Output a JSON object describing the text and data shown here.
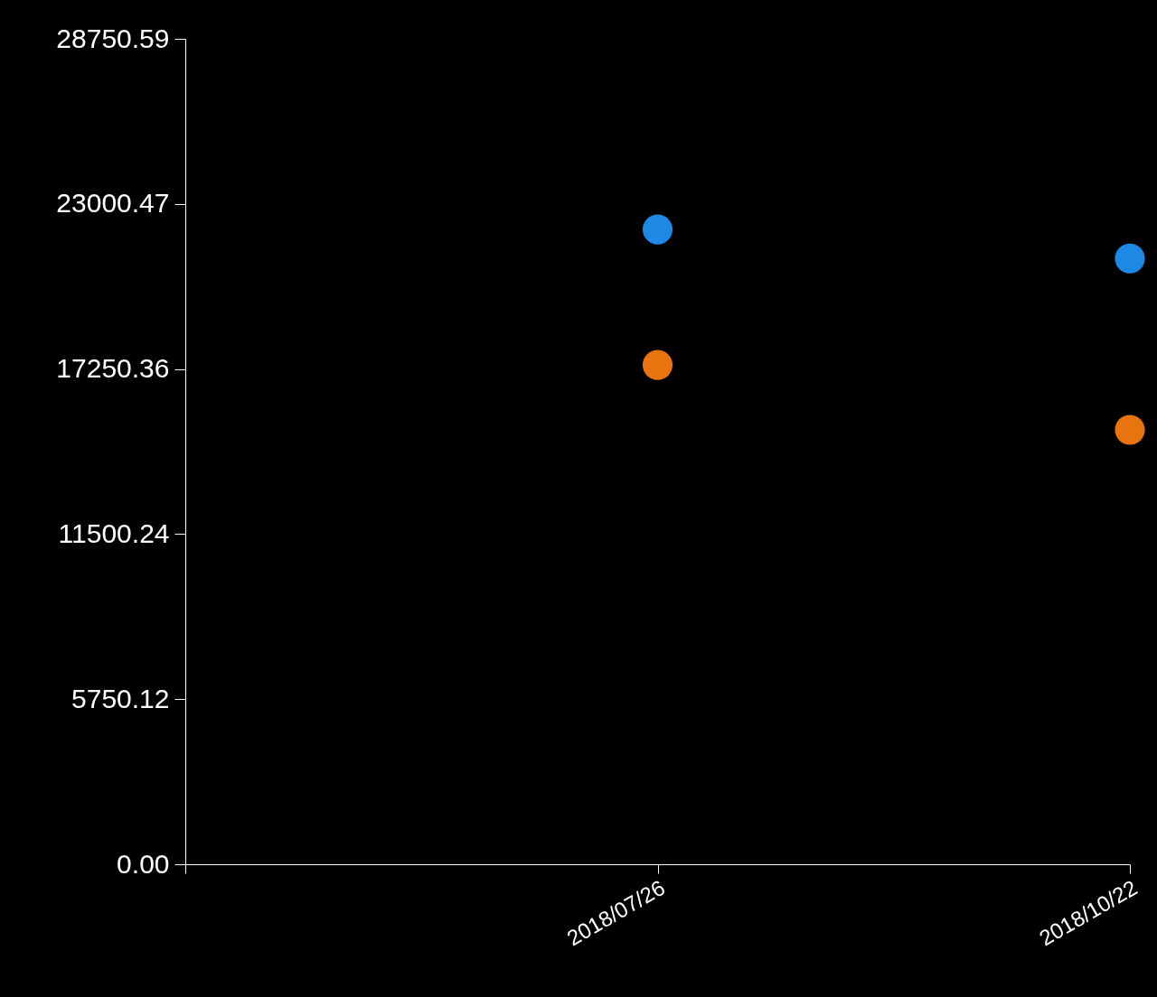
{
  "chart_data": {
    "type": "scatter",
    "categories": [
      null,
      "2018/07/26",
      "2018/10/22"
    ],
    "series": [
      {
        "color": "#1e88e5",
        "values": [
          null,
          22110,
          21100
        ]
      },
      {
        "color": "#e8740f",
        "values": [
          null,
          17390,
          15130
        ]
      }
    ],
    "ylim": [
      0,
      28750.59
    ],
    "yticks": [
      {
        "value": 0,
        "label": "0.00"
      },
      5750.12,
      11500.24,
      17250.36,
      23000.47,
      28750.59
    ],
    "marker": "circle",
    "grid": false,
    "legend": false
  }
}
